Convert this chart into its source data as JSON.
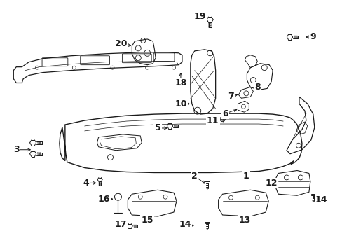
{
  "background_color": "#ffffff",
  "fig_width": 4.89,
  "fig_height": 3.6,
  "dpi": 100,
  "line_color": "#1a1a1a",
  "part_color": "#2a2a2a"
}
